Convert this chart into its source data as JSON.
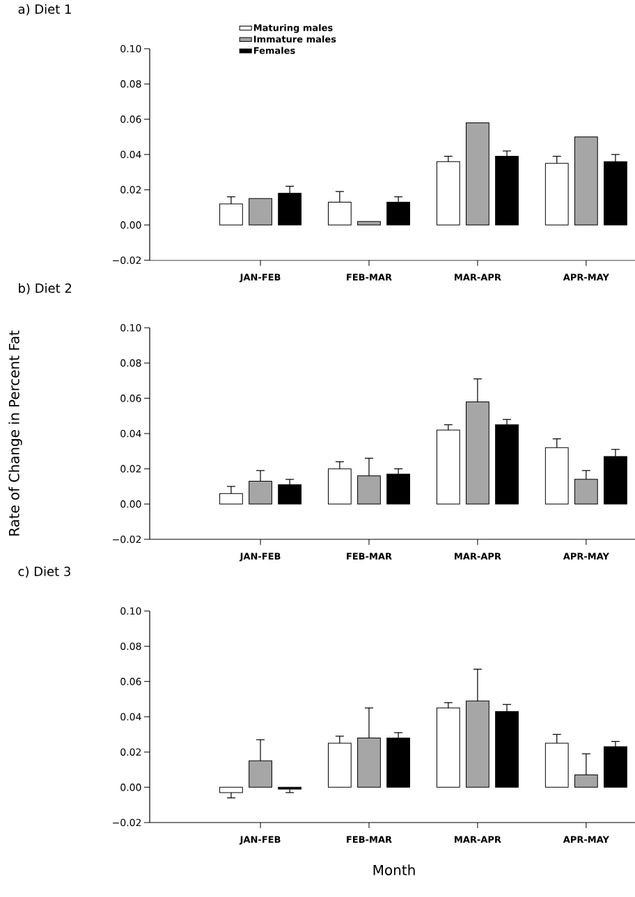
{
  "chart_data": [
    {
      "type": "bar",
      "title": "a) Diet 1",
      "categories": [
        "JAN-FEB",
        "FEB-MAR",
        "MAR-APR",
        "APR-MAY"
      ],
      "ylim": [
        -0.02,
        0.1
      ],
      "yticks": [
        {
          "value": -0.02,
          "label": "−0.02"
        },
        {
          "value": 0.0,
          "label": "0.00"
        },
        {
          "value": 0.02,
          "label": "0.02"
        },
        {
          "value": 0.04,
          "label": "0.04"
        },
        {
          "value": 0.06,
          "label": "0.06"
        },
        {
          "value": 0.08,
          "label": "0.08"
        },
        {
          "value": 0.1,
          "label": "0.10"
        }
      ],
      "legend": "top left",
      "series": [
        {
          "name": "Maturing males",
          "color": "#ffffff",
          "values": [
            0.012,
            0.013,
            0.036,
            0.035
          ],
          "errors": [
            [
              0.012,
              0.016
            ],
            [
              0.013,
              0.019
            ],
            [
              0.036,
              0.039
            ],
            [
              0.035,
              0.039
            ]
          ]
        },
        {
          "name": "Immature males",
          "color": "#a6a6a6",
          "values": [
            0.015,
            0.002,
            0.058,
            0.05
          ]
        },
        {
          "name": "Females",
          "color": "#000000",
          "values": [
            0.018,
            0.013,
            0.039,
            0.036
          ],
          "errors": [
            [
              0.018,
              0.022
            ],
            [
              0.013,
              0.016
            ],
            [
              0.039,
              0.042
            ],
            [
              0.036,
              0.04
            ]
          ]
        }
      ]
    },
    {
      "type": "bar",
      "title": "b) Diet 2",
      "ylabel": "Rate of Change in Percent Fat",
      "categories": [
        "JAN-FEB",
        "FEB-MAR",
        "MAR-APR",
        "APR-MAY"
      ],
      "ylim": [
        -0.02,
        0.1
      ],
      "yticks": [
        {
          "value": -0.02,
          "label": "−0.02"
        },
        {
          "value": 0.0,
          "label": "0.00"
        },
        {
          "value": 0.02,
          "label": "0.02"
        },
        {
          "value": 0.04,
          "label": "0.04"
        },
        {
          "value": 0.06,
          "label": "0.06"
        },
        {
          "value": 0.08,
          "label": "0.08"
        },
        {
          "value": 0.1,
          "label": "0.10"
        }
      ],
      "series": [
        {
          "color": "#ffffff",
          "values": [
            0.006,
            0.02,
            0.042,
            0.032
          ],
          "errors": [
            [
              0.006,
              0.01
            ],
            [
              0.02,
              0.024
            ],
            [
              0.042,
              0.045
            ],
            [
              0.032,
              0.037
            ]
          ]
        },
        {
          "color": "#a6a6a6",
          "values": [
            0.013,
            0.016,
            0.058,
            0.014
          ],
          "errors": [
            [
              0.013,
              0.019
            ],
            [
              0.016,
              0.026
            ],
            [
              0.058,
              0.071
            ],
            [
              0.014,
              0.019
            ]
          ]
        },
        {
          "color": "#000000",
          "values": [
            0.011,
            0.017,
            0.045,
            0.027
          ],
          "errors": [
            [
              0.011,
              0.014
            ],
            [
              0.017,
              0.02
            ],
            [
              0.045,
              0.048
            ],
            [
              0.027,
              0.031
            ]
          ]
        }
      ]
    },
    {
      "type": "bar",
      "title": "c) Diet 3",
      "xlabel": "Month",
      "categories": [
        "JAN-FEB",
        "FEB-MAR",
        "MAR-APR",
        "APR-MAY"
      ],
      "ylim": [
        -0.02,
        0.1
      ],
      "yticks": [
        {
          "value": -0.02,
          "label": "−0.02"
        },
        {
          "value": 0.0,
          "label": "0.00"
        },
        {
          "value": 0.02,
          "label": "0.02"
        },
        {
          "value": 0.04,
          "label": "0.04"
        },
        {
          "value": 0.06,
          "label": "0.06"
        },
        {
          "value": 0.08,
          "label": "0.08"
        },
        {
          "value": 0.1,
          "label": "0.10"
        }
      ],
      "series": [
        {
          "color": "#ffffff",
          "values": [
            -0.003,
            0.025,
            0.045,
            0.025
          ],
          "errors": [
            [
              -0.006,
              -0.003
            ],
            [
              0.025,
              0.029
            ],
            [
              0.045,
              0.048
            ],
            [
              0.025,
              0.03
            ]
          ]
        },
        {
          "color": "#a6a6a6",
          "values": [
            0.015,
            0.028,
            0.049,
            0.007
          ],
          "errors": [
            [
              0.015,
              0.027
            ],
            [
              0.028,
              0.045
            ],
            [
              0.049,
              0.067
            ],
            [
              0.007,
              0.019
            ]
          ]
        },
        {
          "color": "#000000",
          "values": [
            -0.001,
            0.028,
            0.043,
            0.023
          ],
          "errors": [
            [
              -0.003,
              -0.001
            ],
            [
              0.028,
              0.031
            ],
            [
              0.043,
              0.047
            ],
            [
              0.023,
              0.026
            ]
          ]
        }
      ]
    }
  ]
}
